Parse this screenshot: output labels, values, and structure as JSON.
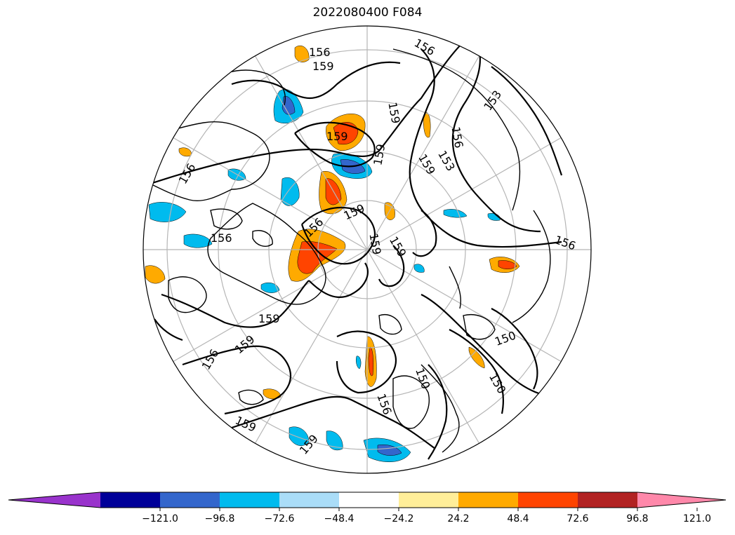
{
  "title": "2022080400 F084",
  "map": {
    "projection": "north-polar-stereographic",
    "contour_labels": [
      "156",
      "159",
      "156",
      "159",
      "153",
      "159",
      "159",
      "156",
      "156",
      "159",
      "156",
      "159",
      "156",
      "156",
      "159",
      "156",
      "159",
      "159",
      "159",
      "150",
      "156",
      "150",
      "159",
      "159",
      "153",
      "150"
    ],
    "land_outline_color": "#000000",
    "graticule_color": "#b5b5b5",
    "contour_color": "#000000"
  },
  "colorbar": {
    "ticks": [
      "−121.0",
      "−96.8",
      "−72.6",
      "−48.4",
      "−24.2",
      "24.2",
      "48.4",
      "72.6",
      "96.8",
      "121.0"
    ],
    "colors": [
      "#9933cc",
      "#000099",
      "#3366cc",
      "#00bbee",
      "#aaddf8",
      "#ffffff",
      "#ffee99",
      "#ffaa00",
      "#ff4400",
      "#b22222",
      "#ff88aa"
    ],
    "extend": "both"
  }
}
